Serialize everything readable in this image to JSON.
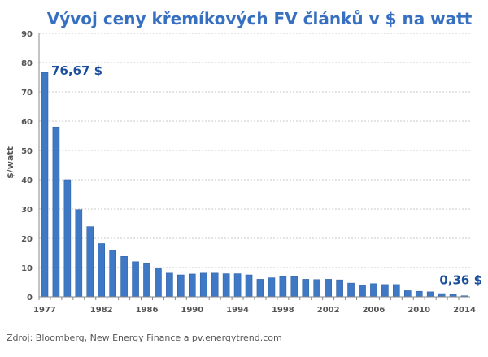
{
  "colors": {
    "bar": "#3f78c4",
    "bar_edge": "#2a5a9e",
    "title": "#3770c0",
    "annotation": "#1b4f9c",
    "grid": "#c8c8c8",
    "axis": "#888888"
  },
  "source": "Zdroj: Bloomberg, New Energy Finance a pv.energytrend.com",
  "chart_data": {
    "type": "bar",
    "title": "Vývoj ceny křemíkových FV článků v $ na watt",
    "ylabel": "$/watt",
    "xlabel": "",
    "ylim": [
      0,
      90
    ],
    "yticks": [
      0,
      10,
      20,
      30,
      40,
      50,
      60,
      70,
      80,
      90
    ],
    "grid": true,
    "categories": [
      1977,
      1978,
      1979,
      1980,
      1981,
      1982,
      1983,
      1984,
      1985,
      1986,
      1987,
      1988,
      1989,
      1990,
      1991,
      1992,
      1993,
      1994,
      1995,
      1996,
      1997,
      1998,
      1999,
      2000,
      2001,
      2002,
      2003,
      2004,
      2005,
      2006,
      2007,
      2008,
      2009,
      2010,
      2011,
      2012,
      2013,
      2014
    ],
    "xtick_labels": [
      "1977",
      "1982",
      "1986",
      "1990",
      "1994",
      "1998",
      "2002",
      "2006",
      "2010",
      "2014"
    ],
    "values": [
      76.67,
      58,
      40,
      29.8,
      24,
      18.2,
      16,
      13.8,
      12,
      11.3,
      9.9,
      8.1,
      7.5,
      7.8,
      8.1,
      8.1,
      7.9,
      7.9,
      7.5,
      6,
      6.5,
      6.9,
      6.9,
      6,
      5.9,
      6,
      5.8,
      4.7,
      4.1,
      4.5,
      4.2,
      4.2,
      2.1,
      1.9,
      1.7,
      1.1,
      0.8,
      0.36
    ],
    "annotations": [
      {
        "text": "76,67 $",
        "category": 1977
      },
      {
        "text": "0,36 $",
        "category": 2014
      }
    ]
  }
}
